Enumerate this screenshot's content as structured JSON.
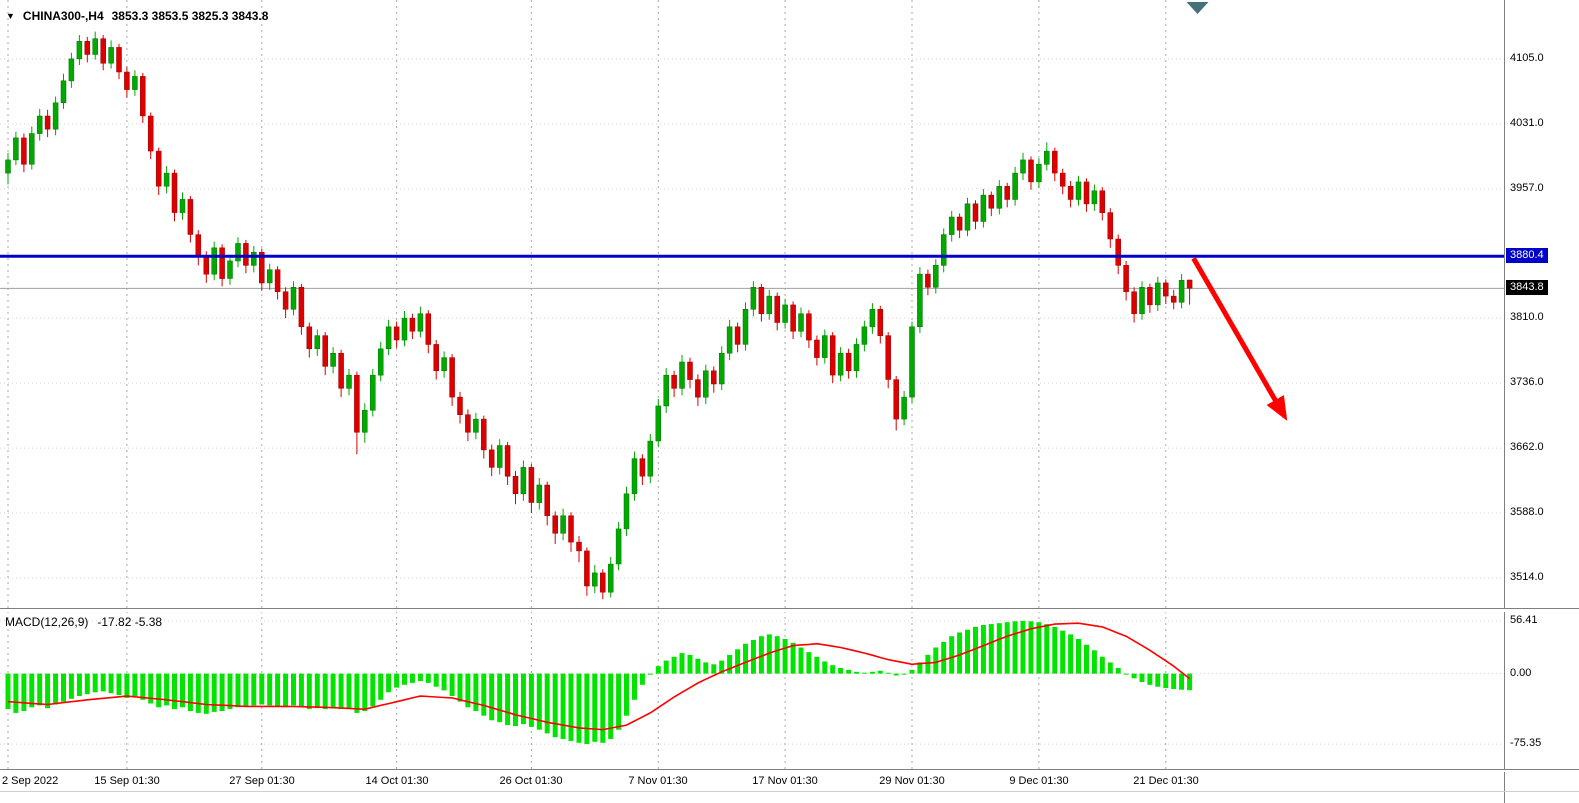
{
  "header": {
    "symbol": "CHINA300-,H4",
    "ohlc": "3853.3 3853.5 3825.3 3843.8"
  },
  "indicator_label": {
    "name": "MACD(12,26,9)",
    "values": "-17.82 -5.38"
  },
  "colors": {
    "up": "#00a800",
    "up_border": "#007400",
    "down": "#dc0000",
    "down_border": "#970000",
    "hline": "#0000c8",
    "bid_line": "#a0a0a0",
    "bid_badge": "#000000",
    "arrow": "#ff0000",
    "shift_marker": "#45707c",
    "macd_hist": "#00e400",
    "macd_signal": "#ff0000",
    "grid_v": "#a8a8a8",
    "grid_h": "#d2d2d2"
  },
  "chart_data": {
    "type": "candlestick_with_macd",
    "symbol": "CHINA300-",
    "timeframe": "H4",
    "price_panel": {
      "ymax": 4172,
      "ymin": 3480,
      "yticks": [
        {
          "v": 4105,
          "label": "4105.0"
        },
        {
          "v": 4031,
          "label": "4031.0"
        },
        {
          "v": 3957,
          "label": "3957.0"
        },
        {
          "v": 3810,
          "label": "3810.0"
        },
        {
          "v": 3736,
          "label": "3736.0"
        },
        {
          "v": 3662,
          "label": "3662.0"
        },
        {
          "v": 3588,
          "label": "3588.0"
        },
        {
          "v": 3514,
          "label": "3514.0"
        }
      ],
      "hline": {
        "value": 3880.4,
        "label": "3880.4"
      },
      "bid": {
        "value": 3843.8,
        "label": "3843.8"
      },
      "arrow": {
        "from_i": 149.5,
        "from_price": 3878,
        "to_i": 161,
        "to_price": 3698
      },
      "ohlc": [
        [
          3975,
          3998,
          3962,
          3990
        ],
        [
          3990,
          4022,
          3984,
          4015
        ],
        [
          4015,
          4020,
          3976,
          3985
        ],
        [
          3985,
          4028,
          3979,
          4020
        ],
        [
          4020,
          4048,
          4012,
          4040
        ],
        [
          4040,
          4047,
          4016,
          4025
        ],
        [
          4025,
          4062,
          4018,
          4055
        ],
        [
          4055,
          4088,
          4048,
          4080
        ],
        [
          4080,
          4112,
          4072,
          4105
        ],
        [
          4105,
          4132,
          4098,
          4125
        ],
        [
          4125,
          4130,
          4101,
          4110
        ],
        [
          4110,
          4136,
          4104,
          4128
        ],
        [
          4128,
          4132,
          4092,
          4100
        ],
        [
          4100,
          4126,
          4094,
          4118
        ],
        [
          4118,
          4122,
          4082,
          4090
        ],
        [
          4090,
          4096,
          4061,
          4070
        ],
        [
          4070,
          4092,
          4063,
          4085
        ],
        [
          4085,
          4089,
          4032,
          4040
        ],
        [
          4040,
          4044,
          3991,
          4000
        ],
        [
          4000,
          4004,
          3950,
          3960
        ],
        [
          3960,
          3983,
          3952,
          3975
        ],
        [
          3975,
          3979,
          3920,
          3930
        ],
        [
          3930,
          3953,
          3922,
          3945
        ],
        [
          3945,
          3949,
          3896,
          3905
        ],
        [
          3905,
          3910,
          3870,
          3880
        ],
        [
          3880,
          3886,
          3850,
          3860
        ],
        [
          3860,
          3897,
          3853,
          3890
        ],
        [
          3890,
          3894,
          3846,
          3855
        ],
        [
          3855,
          3882,
          3848,
          3875
        ],
        [
          3875,
          3902,
          3868,
          3895
        ],
        [
          3895,
          3899,
          3861,
          3870
        ],
        [
          3870,
          3892,
          3862,
          3885
        ],
        [
          3885,
          3889,
          3841,
          3850
        ],
        [
          3850,
          3872,
          3842,
          3865
        ],
        [
          3865,
          3869,
          3831,
          3840
        ],
        [
          3840,
          3845,
          3810,
          3820
        ],
        [
          3820,
          3852,
          3813,
          3845
        ],
        [
          3845,
          3849,
          3791,
          3800
        ],
        [
          3800,
          3805,
          3765,
          3775
        ],
        [
          3775,
          3797,
          3767,
          3790
        ],
        [
          3790,
          3794,
          3745,
          3755
        ],
        [
          3755,
          3777,
          3747,
          3770
        ],
        [
          3770,
          3774,
          3720,
          3730
        ],
        [
          3730,
          3752,
          3722,
          3745
        ],
        [
          3745,
          3749,
          3655,
          3680
        ],
        [
          3680,
          3713,
          3668,
          3705
        ],
        [
          3705,
          3752,
          3698,
          3745
        ],
        [
          3745,
          3783,
          3738,
          3775
        ],
        [
          3775,
          3808,
          3768,
          3800
        ],
        [
          3800,
          3806,
          3776,
          3785
        ],
        [
          3785,
          3818,
          3778,
          3810
        ],
        [
          3810,
          3815,
          3786,
          3795
        ],
        [
          3795,
          3823,
          3788,
          3815
        ],
        [
          3815,
          3819,
          3770,
          3780
        ],
        [
          3780,
          3785,
          3740,
          3750
        ],
        [
          3750,
          3772,
          3742,
          3765
        ],
        [
          3765,
          3769,
          3710,
          3720
        ],
        [
          3720,
          3726,
          3690,
          3700
        ],
        [
          3700,
          3706,
          3670,
          3680
        ],
        [
          3680,
          3702,
          3672,
          3695
        ],
        [
          3695,
          3699,
          3650,
          3660
        ],
        [
          3660,
          3666,
          3630,
          3640
        ],
        [
          3640,
          3672,
          3632,
          3665
        ],
        [
          3665,
          3669,
          3620,
          3630
        ],
        [
          3630,
          3636,
          3598,
          3610
        ],
        [
          3610,
          3648,
          3602,
          3640
        ],
        [
          3640,
          3644,
          3588,
          3600
        ],
        [
          3600,
          3628,
          3592,
          3620
        ],
        [
          3620,
          3624,
          3574,
          3585
        ],
        [
          3585,
          3590,
          3553,
          3565
        ],
        [
          3565,
          3593,
          3557,
          3585
        ],
        [
          3585,
          3589,
          3544,
          3555
        ],
        [
          3555,
          3562,
          3532,
          3545
        ],
        [
          3545,
          3549,
          3494,
          3505
        ],
        [
          3505,
          3529,
          3497,
          3520
        ],
        [
          3520,
          3524,
          3490,
          3498
        ],
        [
          3498,
          3538,
          3492,
          3530
        ],
        [
          3530,
          3578,
          3523,
          3570
        ],
        [
          3570,
          3618,
          3562,
          3610
        ],
        [
          3610,
          3658,
          3602,
          3650
        ],
        [
          3650,
          3655,
          3620,
          3630
        ],
        [
          3630,
          3678,
          3622,
          3670
        ],
        [
          3670,
          3718,
          3663,
          3710
        ],
        [
          3710,
          3753,
          3702,
          3745
        ],
        [
          3745,
          3750,
          3720,
          3730
        ],
        [
          3730,
          3768,
          3722,
          3760
        ],
        [
          3760,
          3765,
          3730,
          3740
        ],
        [
          3740,
          3746,
          3710,
          3720
        ],
        [
          3720,
          3757,
          3712,
          3750
        ],
        [
          3750,
          3755,
          3725,
          3735
        ],
        [
          3735,
          3778,
          3728,
          3770
        ],
        [
          3770,
          3808,
          3762,
          3800
        ],
        [
          3800,
          3805,
          3771,
          3780
        ],
        [
          3780,
          3828,
          3773,
          3820
        ],
        [
          3820,
          3852,
          3812,
          3845
        ],
        [
          3845,
          3849,
          3806,
          3815
        ],
        [
          3815,
          3842,
          3808,
          3835
        ],
        [
          3835,
          3839,
          3796,
          3805
        ],
        [
          3805,
          3832,
          3798,
          3825
        ],
        [
          3825,
          3829,
          3786,
          3795
        ],
        [
          3795,
          3822,
          3788,
          3815
        ],
        [
          3815,
          3819,
          3776,
          3785
        ],
        [
          3785,
          3790,
          3756,
          3765
        ],
        [
          3765,
          3797,
          3758,
          3790
        ],
        [
          3790,
          3794,
          3736,
          3745
        ],
        [
          3745,
          3777,
          3738,
          3770
        ],
        [
          3770,
          3775,
          3741,
          3750
        ],
        [
          3750,
          3787,
          3742,
          3780
        ],
        [
          3780,
          3807,
          3772,
          3800
        ],
        [
          3800,
          3827,
          3792,
          3820
        ],
        [
          3820,
          3824,
          3781,
          3790
        ],
        [
          3790,
          3794,
          3730,
          3740
        ],
        [
          3740,
          3744,
          3682,
          3695
        ],
        [
          3695,
          3727,
          3688,
          3720
        ],
        [
          3720,
          3806,
          3713,
          3800
        ],
        [
          3800,
          3868,
          3793,
          3860
        ],
        [
          3860,
          3865,
          3836,
          3845
        ],
        [
          3845,
          3877,
          3838,
          3870
        ],
        [
          3870,
          3912,
          3862,
          3905
        ],
        [
          3905,
          3932,
          3897,
          3925
        ],
        [
          3925,
          3929,
          3901,
          3910
        ],
        [
          3910,
          3947,
          3903,
          3940
        ],
        [
          3940,
          3944,
          3911,
          3920
        ],
        [
          3920,
          3957,
          3913,
          3950
        ],
        [
          3950,
          3954,
          3926,
          3935
        ],
        [
          3935,
          3967,
          3928,
          3960
        ],
        [
          3960,
          3964,
          3936,
          3945
        ],
        [
          3945,
          3982,
          3938,
          3975
        ],
        [
          3975,
          3998,
          3967,
          3990
        ],
        [
          3990,
          3994,
          3956,
          3965
        ],
        [
          3965,
          3992,
          3958,
          3985
        ],
        [
          3985,
          4010,
          3978,
          4000
        ],
        [
          4000,
          4004,
          3966,
          3975
        ],
        [
          3975,
          3980,
          3951,
          3960
        ],
        [
          3960,
          3966,
          3936,
          3945
        ],
        [
          3945,
          3972,
          3938,
          3965
        ],
        [
          3965,
          3969,
          3931,
          3940
        ],
        [
          3940,
          3962,
          3932,
          3955
        ],
        [
          3955,
          3959,
          3921,
          3930
        ],
        [
          3930,
          3935,
          3890,
          3900
        ],
        [
          3900,
          3905,
          3860,
          3870
        ],
        [
          3870,
          3875,
          3830,
          3840
        ],
        [
          3840,
          3845,
          3805,
          3815
        ],
        [
          3815,
          3852,
          3808,
          3845
        ],
        [
          3845,
          3849,
          3816,
          3825
        ],
        [
          3825,
          3857,
          3818,
          3850
        ],
        [
          3850,
          3854,
          3826,
          3835
        ],
        [
          3835,
          3842,
          3820,
          3828
        ],
        [
          3828,
          3860,
          3821,
          3853
        ],
        [
          3853.3,
          3853.5,
          3825.3,
          3843.8
        ]
      ]
    },
    "macd_panel": {
      "ymax": 67,
      "ymin": -102,
      "yticks": [
        {
          "v": 56.41,
          "label": "56.41"
        },
        {
          "v": 0,
          "label": "0.00"
        },
        {
          "v": -75.35,
          "label": "-75.35"
        }
      ],
      "histogram": [
        -38,
        -42,
        -40,
        -36,
        -34,
        -37,
        -33,
        -30,
        -27,
        -24,
        -22,
        -20,
        -19,
        -21,
        -23,
        -26,
        -24,
        -28,
        -32,
        -36,
        -34,
        -38,
        -36,
        -40,
        -42,
        -43,
        -41,
        -40,
        -38,
        -36,
        -35,
        -34,
        -33,
        -34,
        -35,
        -36,
        -34,
        -36,
        -38,
        -37,
        -38,
        -36,
        -38,
        -37,
        -42,
        -40,
        -35,
        -28,
        -20,
        -15,
        -12,
        -10,
        -8,
        -10,
        -14,
        -18,
        -24,
        -30,
        -36,
        -40,
        -45,
        -50,
        -52,
        -55,
        -56,
        -54,
        -57,
        -60,
        -64,
        -68,
        -70,
        -72,
        -74,
        -75.3,
        -73,
        -74,
        -70,
        -60,
        -45,
        -28,
        -12,
        0,
        8,
        14,
        18,
        22,
        20,
        16,
        12,
        10,
        14,
        20,
        26,
        32,
        36,
        40,
        42,
        40,
        37,
        33,
        28,
        23,
        18,
        13,
        9,
        6,
        4,
        2,
        1,
        2,
        3,
        1,
        -2,
        -1,
        4,
        12,
        20,
        28,
        34,
        40,
        44,
        47,
        50,
        52,
        53,
        54,
        55,
        56,
        56.4,
        56,
        55,
        53,
        50,
        46,
        42,
        37,
        31,
        25,
        18,
        12,
        6,
        0,
        -5,
        -9,
        -12,
        -14,
        -15.5,
        -16.5,
        -17.2,
        -17.8
      ],
      "signal": [
        -30,
        -30.6,
        -31.2,
        -31.8,
        -32.4,
        -33,
        -32,
        -31,
        -30,
        -29,
        -28,
        -27.2,
        -26.4,
        -25.6,
        -24.8,
        -24,
        -24.8,
        -25.6,
        -26.4,
        -27.2,
        -28,
        -29,
        -30,
        -31,
        -32,
        -33,
        -33.4,
        -33.8,
        -34.2,
        -34.6,
        -35,
        -35,
        -35,
        -35,
        -35,
        -35,
        -35.2,
        -35.4,
        -35.6,
        -35.8,
        -36,
        -36.4,
        -36.8,
        -37.2,
        -37.6,
        -38,
        -36,
        -34,
        -32,
        -30,
        -28,
        -26,
        -24,
        -24.5,
        -25,
        -25.5,
        -26,
        -28,
        -30,
        -32,
        -34,
        -36.5,
        -39,
        -41.5,
        -44,
        -46,
        -48,
        -50,
        -52,
        -53.5,
        -55,
        -56.5,
        -58,
        -58.7,
        -59.3,
        -60,
        -58.3,
        -56.7,
        -55,
        -50.7,
        -46.3,
        -42,
        -36.3,
        -30.7,
        -25,
        -20,
        -15,
        -10,
        -6,
        -2,
        2,
        5.3,
        8.7,
        12,
        15.3,
        18.7,
        22,
        24.7,
        27.3,
        30,
        30.7,
        31.3,
        32,
        30.7,
        29.3,
        28,
        26,
        24,
        22,
        19.7,
        17.3,
        15,
        13.3,
        11.7,
        10,
        10.7,
        11.3,
        12,
        14.7,
        17.3,
        20,
        23.3,
        26.7,
        30,
        33.3,
        36.7,
        40,
        42.7,
        45.3,
        48,
        49.7,
        51.3,
        53,
        53.3,
        53.7,
        54,
        52.7,
        51.3,
        50,
        46.7,
        43.3,
        40,
        35,
        30,
        25,
        19.3,
        13.7,
        8,
        1.3,
        -5.4
      ]
    },
    "x_ticks": [
      {
        "i": 0,
        "label": "2 Sep 2022"
      },
      {
        "i": 15,
        "label": "15 Sep 01:30"
      },
      {
        "i": 32,
        "label": "27 Sep 01:30"
      },
      {
        "i": 49,
        "label": "14 Oct 01:30"
      },
      {
        "i": 66,
        "label": "26 Oct 01:30"
      },
      {
        "i": 82,
        "label": "7 Nov 01:30"
      },
      {
        "i": 98,
        "label": "17 Nov 01:30"
      },
      {
        "i": 114,
        "label": "29 Nov 01:30"
      },
      {
        "i": 130,
        "label": "9 Dec 01:30"
      },
      {
        "i": 146,
        "label": "21 Dec 01:30"
      }
    ]
  }
}
